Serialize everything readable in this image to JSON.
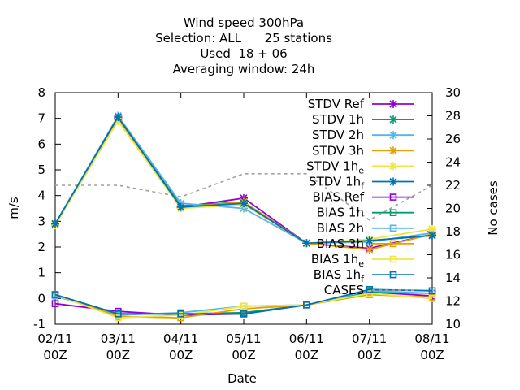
{
  "chart_data": {
    "type": "line",
    "title_lines": [
      "Wind speed 300hPa",
      "Selection: ALL      25 stations",
      "Used  18 + 06",
      "Averaging window: 24h"
    ],
    "xlabel": "Date",
    "ylabel": "m/s",
    "y2label": "No cases",
    "x_ticks": [
      [
        "02/11",
        "00Z"
      ],
      [
        "03/11",
        "00Z"
      ],
      [
        "04/11",
        "00Z"
      ],
      [
        "05/11",
        "00Z"
      ],
      [
        "06/11",
        "00Z"
      ],
      [
        "07/11",
        "00Z"
      ],
      [
        "08/11",
        "00Z"
      ]
    ],
    "ylim": [
      -1,
      8
    ],
    "y_ticks": [
      "-1",
      "0",
      "1",
      "2",
      "3",
      "4",
      "5",
      "6",
      "7",
      "8"
    ],
    "y2lim": [
      10,
      30
    ],
    "y2_ticks": [
      "10",
      "12",
      "14",
      "16",
      "18",
      "20",
      "22",
      "24",
      "26",
      "28",
      "30"
    ],
    "legend_position": "top-right",
    "series": [
      {
        "name": "STDV Ref",
        "label_main": "STDV Ref",
        "label_sub": "",
        "color": "#9400d3",
        "marker": "x",
        "axis": "y1",
        "dash": false,
        "values": [
          2.9,
          7.0,
          3.55,
          3.9,
          2.15,
          1.95,
          2.5
        ]
      },
      {
        "name": "STDV 1h",
        "label_main": "STDV 1h",
        "label_sub": "",
        "color": "#009e73",
        "marker": "x",
        "axis": "y1",
        "dash": false,
        "values": [
          2.9,
          7.05,
          3.6,
          3.75,
          2.15,
          2.25,
          2.45
        ]
      },
      {
        "name": "STDV 2h",
        "label_main": "STDV 2h",
        "label_sub": "",
        "color": "#56b4e9",
        "marker": "x",
        "axis": "y1",
        "dash": false,
        "values": [
          2.9,
          7.1,
          3.7,
          3.5,
          2.15,
          2.2,
          2.55
        ]
      },
      {
        "name": "STDV 3h",
        "label_main": "STDV 3h",
        "label_sub": "",
        "color": "#e69f00",
        "marker": "x",
        "axis": "y1",
        "dash": false,
        "values": [
          2.85,
          6.95,
          3.55,
          3.75,
          2.15,
          1.9,
          2.5
        ]
      },
      {
        "name": "STDV 1he",
        "label_main": "STDV 1h",
        "label_sub": "e",
        "color": "#f0e442",
        "marker": "x",
        "axis": "y1",
        "dash": false,
        "values": [
          2.85,
          6.9,
          3.5,
          3.65,
          2.15,
          2.3,
          2.7
        ]
      },
      {
        "name": "STDV 1hf",
        "label_main": "STDV 1h",
        "label_sub": "f",
        "color": "#0072b2",
        "marker": "x",
        "axis": "y1",
        "dash": false,
        "values": [
          2.9,
          7.05,
          3.55,
          3.7,
          2.15,
          2.25,
          2.45
        ]
      },
      {
        "name": "BIAS Ref",
        "label_main": "BIAS Ref",
        "label_sub": "",
        "color": "#9400d3",
        "marker": "square",
        "axis": "y1",
        "dash": false,
        "values": [
          -0.2,
          -0.5,
          -0.65,
          -0.6,
          -0.25,
          0.25,
          0.1
        ]
      },
      {
        "name": "BIAS 1h",
        "label_main": "BIAS 1h",
        "label_sub": "",
        "color": "#009e73",
        "marker": "square",
        "axis": "y1",
        "dash": false,
        "values": [
          0.15,
          -0.6,
          -0.6,
          -0.55,
          -0.25,
          0.25,
          0.2
        ]
      },
      {
        "name": "BIAS 2h",
        "label_main": "BIAS 2h",
        "label_sub": "",
        "color": "#56b4e9",
        "marker": "square",
        "axis": "y1",
        "dash": false,
        "values": [
          0.1,
          -0.65,
          -0.55,
          -0.3,
          -0.25,
          0.3,
          0.2
        ]
      },
      {
        "name": "BIAS 3h",
        "label_main": "BIAS 3h",
        "label_sub": "",
        "color": "#e69f00",
        "marker": "square",
        "axis": "y1",
        "dash": false,
        "values": [
          0.15,
          -0.7,
          -0.75,
          -0.4,
          -0.25,
          0.15,
          0.05
        ]
      },
      {
        "name": "BIAS 1he",
        "label_main": "BIAS 1h",
        "label_sub": "e",
        "color": "#f0e442",
        "marker": "square",
        "axis": "y1",
        "dash": false,
        "values": [
          0.15,
          -0.75,
          -0.65,
          -0.3,
          -0.25,
          0.2,
          0.0
        ]
      },
      {
        "name": "BIAS 1hf",
        "label_main": "BIAS 1h",
        "label_sub": "f",
        "color": "#0072b2",
        "marker": "square",
        "axis": "y1",
        "dash": false,
        "values": [
          0.15,
          -0.6,
          -0.6,
          -0.6,
          -0.25,
          0.35,
          0.3
        ]
      },
      {
        "name": "CASES",
        "label_main": "CASES",
        "label_sub": "",
        "color": "#a0a0a0",
        "marker": "none",
        "axis": "y2",
        "dash": true,
        "values": [
          22,
          22,
          21,
          23,
          23,
          19,
          22
        ]
      }
    ]
  }
}
